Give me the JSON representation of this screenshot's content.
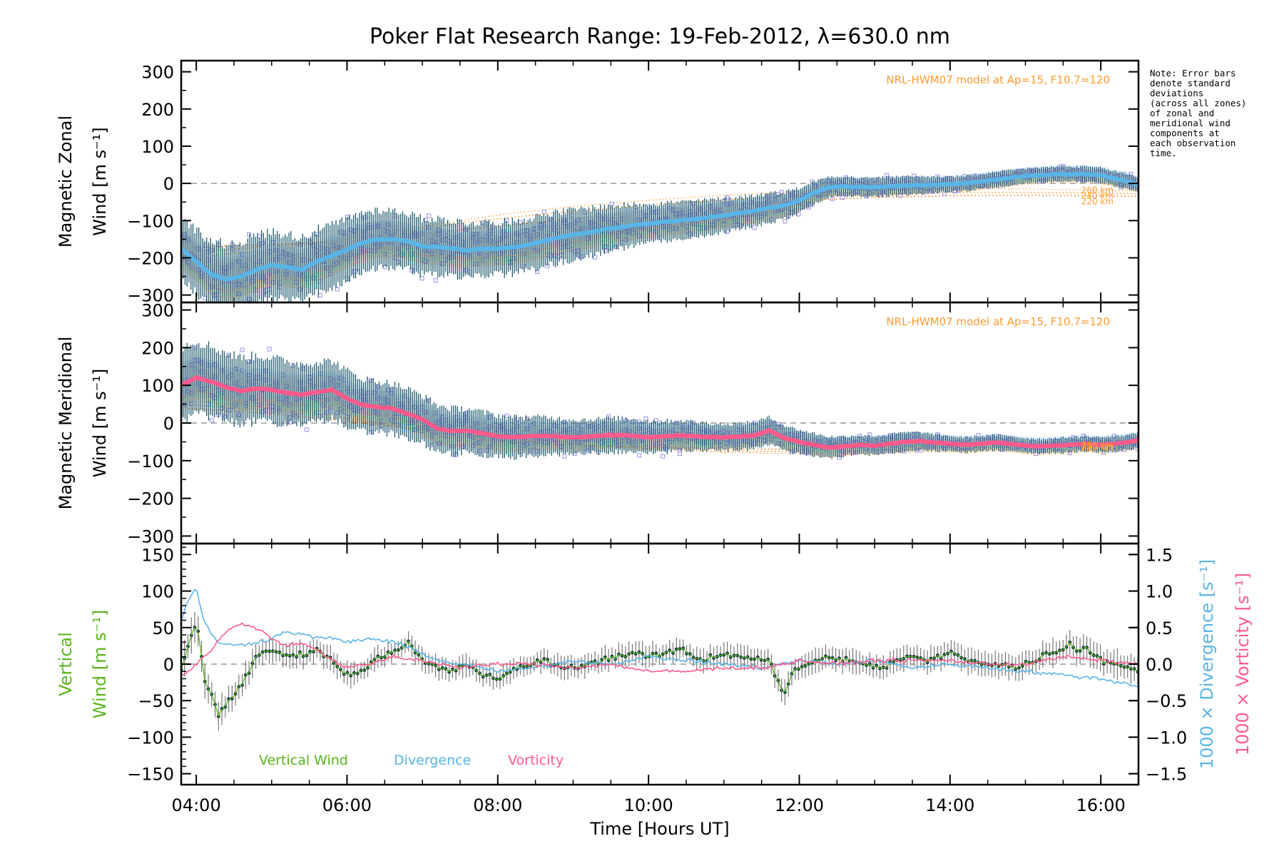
{
  "title": "Poker Flat Research Range: 19-Feb-2012, λ=630.0 nm",
  "note": [
    "Note: Error bars",
    "denote standard",
    "deviations",
    "(across all zones)",
    "of zonal and",
    "meridional wind",
    "components at",
    "each observation",
    "time."
  ],
  "colors": {
    "zonal_mean": "#5ab4e6",
    "meridional_mean": "#ff5a8c",
    "error_bar": "#1e5a6e",
    "model": "#ff9a32",
    "zone_scatter": "#a8a0e8",
    "vertical": "#5ab41e",
    "divergence": "#5ab4e6",
    "vorticity": "#ff5a8c",
    "reference": "#999999"
  },
  "chart_data": [
    {
      "type": "line",
      "panel": "zonal",
      "ylabel_line1": "Magnetic Zonal",
      "ylabel_line2": "Wind [m s⁻¹]",
      "ylim": [
        -320,
        330
      ],
      "yticks": [
        300,
        200,
        100,
        0,
        -100,
        -200,
        -300
      ],
      "xlim": [
        3.8,
        16.5
      ],
      "model_label": "NRL-HWM07 model at Ap=15, F10.7=120",
      "model_altitudes": [
        "260 km",
        "240 km",
        "220 km"
      ],
      "series": [
        {
          "name": "mean",
          "x": [
            3.8,
            4.0,
            4.2,
            4.4,
            4.6,
            4.8,
            5.0,
            5.2,
            5.4,
            5.6,
            5.8,
            6.0,
            6.2,
            6.4,
            6.6,
            6.8,
            7.0,
            7.2,
            7.4,
            7.6,
            7.8,
            8.0,
            8.2,
            8.4,
            8.6,
            8.8,
            9.0,
            9.2,
            9.4,
            9.6,
            9.8,
            10.0,
            10.2,
            10.4,
            10.6,
            10.8,
            11.0,
            11.2,
            11.4,
            11.6,
            11.8,
            12.0,
            12.2,
            12.4,
            12.6,
            12.8,
            13.0,
            13.2,
            13.4,
            13.6,
            13.8,
            14.0,
            14.2,
            14.4,
            14.6,
            14.8,
            15.0,
            15.2,
            15.4,
            15.6,
            15.8,
            16.0,
            16.2,
            16.4,
            16.5
          ],
          "y": [
            -175,
            -210,
            -245,
            -258,
            -250,
            -232,
            -220,
            -225,
            -232,
            -210,
            -195,
            -178,
            -160,
            -150,
            -150,
            -155,
            -170,
            -170,
            -175,
            -180,
            -176,
            -175,
            -172,
            -165,
            -155,
            -146,
            -138,
            -132,
            -124,
            -118,
            -112,
            -108,
            -104,
            -100,
            -96,
            -91,
            -86,
            -80,
            -74,
            -66,
            -60,
            -46,
            -25,
            -10,
            -8,
            -10,
            -10,
            -8,
            -6,
            -5,
            -4,
            -2,
            0,
            5,
            10,
            15,
            20,
            22,
            25,
            25,
            25,
            22,
            12,
            3,
            -5
          ]
        },
        {
          "name": "zonal_sd",
          "x": [
            3.8,
            4.4,
            5.0,
            5.6,
            6.2,
            6.8,
            7.4,
            8.0,
            8.6,
            9.2,
            9.8,
            10.4,
            11.0,
            11.6,
            12.2,
            12.8,
            13.4,
            14.0,
            14.6,
            15.2,
            15.8,
            16.5
          ],
          "y": [
            80,
            95,
            90,
            85,
            80,
            75,
            75,
            70,
            70,
            65,
            55,
            50,
            45,
            40,
            30,
            25,
            25,
            20,
            20,
            20,
            20,
            20
          ]
        },
        {
          "name": "model_260km",
          "x": [
            3.8,
            5,
            6,
            7,
            8,
            9,
            10,
            11,
            12,
            13,
            14,
            15,
            16,
            16.5
          ],
          "y": [
            -200,
            -180,
            -150,
            -115,
            -85,
            -62,
            -45,
            -32,
            -22,
            -16,
            -14,
            -15,
            -18,
            -20
          ]
        },
        {
          "name": "model_240km",
          "x": [
            3.8,
            5,
            6,
            7,
            8,
            9,
            10,
            11,
            12,
            13,
            14,
            15,
            16,
            16.5
          ],
          "y": [
            -185,
            -170,
            -150,
            -120,
            -95,
            -75,
            -58,
            -44,
            -34,
            -27,
            -24,
            -24,
            -26,
            -28
          ]
        },
        {
          "name": "model_220km",
          "x": [
            3.8,
            5,
            6,
            7,
            8,
            9,
            10,
            11,
            12,
            13,
            14,
            15,
            16,
            16.5
          ],
          "y": [
            -170,
            -165,
            -155,
            -135,
            -115,
            -95,
            -75,
            -58,
            -46,
            -38,
            -33,
            -32,
            -33,
            -35
          ]
        }
      ]
    },
    {
      "type": "line",
      "panel": "meridional",
      "ylabel_line1": "Magnetic Meridional",
      "ylabel_line2": "Wind [m s⁻¹]",
      "ylim": [
        -320,
        320
      ],
      "yticks": [
        300,
        200,
        100,
        0,
        -100,
        -200,
        -300
      ],
      "xlim": [
        3.8,
        16.5
      ],
      "model_label": "NRL-HWM07 model at Ap=15, F10.7=120",
      "model_altitudes": [
        "260 km",
        "240 km",
        "220 km"
      ],
      "series": [
        {
          "name": "mean",
          "x": [
            3.8,
            4.0,
            4.2,
            4.4,
            4.6,
            4.8,
            5.0,
            5.2,
            5.4,
            5.6,
            5.8,
            6.0,
            6.2,
            6.4,
            6.6,
            6.8,
            7.0,
            7.2,
            7.4,
            7.6,
            7.8,
            8.0,
            8.2,
            8.4,
            8.6,
            8.8,
            9.0,
            9.2,
            9.4,
            9.6,
            9.8,
            10.0,
            10.2,
            10.4,
            10.6,
            10.8,
            11.0,
            11.2,
            11.4,
            11.6,
            11.8,
            12.0,
            12.2,
            12.4,
            12.6,
            12.8,
            13.0,
            13.2,
            13.4,
            13.6,
            13.8,
            14.0,
            14.2,
            14.4,
            14.6,
            14.8,
            15.0,
            15.2,
            15.4,
            15.6,
            15.8,
            16.0,
            16.2,
            16.4,
            16.5
          ],
          "y": [
            100,
            120,
            110,
            95,
            85,
            92,
            88,
            80,
            75,
            82,
            88,
            65,
            48,
            42,
            38,
            25,
            10,
            -15,
            -22,
            -20,
            -28,
            -35,
            -38,
            -36,
            -34,
            -36,
            -38,
            -36,
            -33,
            -32,
            -34,
            -38,
            -36,
            -33,
            -35,
            -37,
            -38,
            -36,
            -33,
            -20,
            -40,
            -50,
            -58,
            -65,
            -62,
            -58,
            -60,
            -55,
            -50,
            -48,
            -52,
            -55,
            -58,
            -55,
            -52,
            -55,
            -60,
            -62,
            -60,
            -58,
            -55,
            -58,
            -55,
            -50,
            -45
          ]
        },
        {
          "name": "meridional_sd",
          "x": [
            3.8,
            4.4,
            5.0,
            5.6,
            6.2,
            6.8,
            7.4,
            8.0,
            8.6,
            9.2,
            9.8,
            10.4,
            11.0,
            11.6,
            12.2,
            12.8,
            13.4,
            14.0,
            14.6,
            15.2,
            15.8,
            16.5
          ],
          "y": [
            100,
            90,
            85,
            80,
            70,
            65,
            60,
            55,
            50,
            45,
            45,
            40,
            35,
            35,
            30,
            25,
            25,
            20,
            20,
            20,
            20,
            20
          ]
        },
        {
          "name": "model_260km",
          "x": [
            3.8,
            5,
            6,
            7,
            8,
            9,
            10,
            11,
            12,
            13,
            14,
            15,
            16,
            16.5
          ],
          "y": [
            60,
            40,
            15,
            -15,
            -40,
            -58,
            -70,
            -78,
            -82,
            -80,
            -75,
            -68,
            -60,
            -55
          ]
        },
        {
          "name": "model_240km",
          "x": [
            3.8,
            5,
            6,
            7,
            8,
            9,
            10,
            11,
            12,
            13,
            14,
            15,
            16,
            16.5
          ],
          "y": [
            50,
            32,
            10,
            -18,
            -42,
            -58,
            -68,
            -74,
            -76,
            -73,
            -68,
            -62,
            -55,
            -50
          ]
        },
        {
          "name": "model_220km",
          "x": [
            3.8,
            5,
            6,
            7,
            8,
            9,
            10,
            11,
            12,
            13,
            14,
            15,
            16,
            16.5
          ],
          "y": [
            40,
            25,
            5,
            -20,
            -42,
            -55,
            -64,
            -68,
            -70,
            -66,
            -62,
            -56,
            -50,
            -46
          ]
        }
      ]
    },
    {
      "type": "line",
      "panel": "vertical",
      "ylabel_line1": "Vertical",
      "ylabel_line2": "Wind [m s⁻¹]",
      "ylim": [
        -165,
        165
      ],
      "yticks": [
        150,
        100,
        50,
        0,
        -50,
        -100,
        -150
      ],
      "y2label_line1": "1000 × Divergence [s⁻¹]",
      "y2label_line2": "1000 × Vorticity [s⁻¹]",
      "y2lim": [
        -1.65,
        1.65
      ],
      "y2ticks": [
        1.5,
        1.0,
        0.5,
        0.0,
        -0.5,
        -1.0,
        -1.5
      ],
      "y2tick_labels": [
        "1.5",
        "1.0",
        "0.5",
        "0.0",
        "−0.5",
        "−1.0",
        "−1.5"
      ],
      "xlim": [
        3.8,
        16.5
      ],
      "xticks": [
        4,
        6,
        8,
        10,
        12,
        14,
        16
      ],
      "xtick_labels": [
        "04:00",
        "06:00",
        "08:00",
        "10:00",
        "12:00",
        "14:00",
        "16:00"
      ],
      "xlabel": "Time [Hours UT]",
      "legend": [
        "Vertical Wind",
        "Divergence",
        "Vorticity"
      ],
      "series": [
        {
          "name": "Vertical Wind",
          "x": [
            3.8,
            3.9,
            4.0,
            4.05,
            4.1,
            4.2,
            4.3,
            4.4,
            4.5,
            4.6,
            4.7,
            4.8,
            4.9,
            5.0,
            5.2,
            5.4,
            5.6,
            5.8,
            6.0,
            6.2,
            6.4,
            6.6,
            6.8,
            7.0,
            7.2,
            7.4,
            7.6,
            7.8,
            8.0,
            8.3,
            8.6,
            8.9,
            9.2,
            9.5,
            9.8,
            10.1,
            10.4,
            10.7,
            11.0,
            11.3,
            11.6,
            11.7,
            11.8,
            11.9,
            12.2,
            12.5,
            12.8,
            13.1,
            13.4,
            13.7,
            14.0,
            14.3,
            14.6,
            14.9,
            15.2,
            15.5,
            15.6,
            15.7,
            15.8,
            16.0,
            16.2,
            16.5
          ],
          "y": [
            -10,
            30,
            60,
            25,
            -20,
            -40,
            -70,
            -55,
            -40,
            -30,
            -10,
            10,
            15,
            20,
            10,
            15,
            20,
            5,
            -15,
            -10,
            10,
            15,
            30,
            5,
            -5,
            -10,
            0,
            -15,
            -20,
            -5,
            5,
            -5,
            0,
            10,
            15,
            10,
            20,
            5,
            15,
            10,
            5,
            -20,
            -45,
            -10,
            5,
            10,
            0,
            -5,
            10,
            5,
            15,
            5,
            0,
            -5,
            10,
            20,
            30,
            15,
            25,
            5,
            0,
            -10
          ]
        },
        {
          "name": "Divergence",
          "x": [
            3.8,
            3.9,
            4.0,
            4.05,
            4.1,
            4.2,
            4.3,
            4.5,
            4.8,
            5.0,
            5.2,
            5.5,
            5.8,
            6.0,
            6.3,
            6.6,
            6.9,
            7.2,
            7.5,
            7.8,
            8.0,
            8.5,
            9.0,
            9.5,
            10.0,
            10.5,
            11.0,
            11.5,
            11.8,
            12.0,
            12.5,
            13.0,
            13.5,
            14.0,
            14.5,
            15.0,
            15.5,
            16.0,
            16.5
          ],
          "y": [
            0.6,
            0.9,
            1.05,
            0.8,
            0.6,
            0.4,
            0.3,
            0.25,
            0.3,
            0.35,
            0.45,
            0.38,
            0.35,
            0.3,
            0.35,
            0.3,
            0.2,
            0.05,
            0.0,
            -0.05,
            -0.1,
            -0.05,
            0.05,
            0.0,
            0.1,
            0.05,
            0.0,
            -0.05,
            0.0,
            0.05,
            0.0,
            0.05,
            -0.05,
            0.0,
            -0.05,
            -0.1,
            -0.15,
            -0.2,
            -0.3
          ]
        },
        {
          "name": "Vorticity",
          "x": [
            3.8,
            3.9,
            4.0,
            4.2,
            4.4,
            4.6,
            4.8,
            5.0,
            5.2,
            5.4,
            5.6,
            5.8,
            6.0,
            6.3,
            6.6,
            7.0,
            7.5,
            8.0,
            8.5,
            9.0,
            9.5,
            10.0,
            10.5,
            11.0,
            11.5,
            11.8,
            12.0,
            12.5,
            13.0,
            13.5,
            14.0,
            14.5,
            15.0,
            15.5,
            16.0,
            16.5
          ],
          "y": [
            -0.15,
            -0.1,
            0.0,
            0.2,
            0.45,
            0.55,
            0.5,
            0.35,
            0.25,
            0.3,
            0.2,
            0.05,
            -0.05,
            0.0,
            0.1,
            0.05,
            -0.05,
            0.0,
            0.0,
            -0.05,
            0.0,
            -0.1,
            -0.1,
            -0.05,
            -0.05,
            0.0,
            0.05,
            0.0,
            0.05,
            0.05,
            0.05,
            0.0,
            0.0,
            0.1,
            0.05,
            0.0
          ]
        },
        {
          "name": "vertical_error",
          "x": [
            3.8,
            4.4,
            5.0,
            6.0,
            7.0,
            8.0,
            9.0,
            10.0,
            11.0,
            12.0,
            13.0,
            14.0,
            15.0,
            16.0,
            16.5
          ],
          "y": [
            20,
            18,
            15,
            14,
            13,
            13,
            13,
            14,
            14,
            14,
            14,
            15,
            16,
            18,
            18
          ]
        }
      ]
    }
  ]
}
